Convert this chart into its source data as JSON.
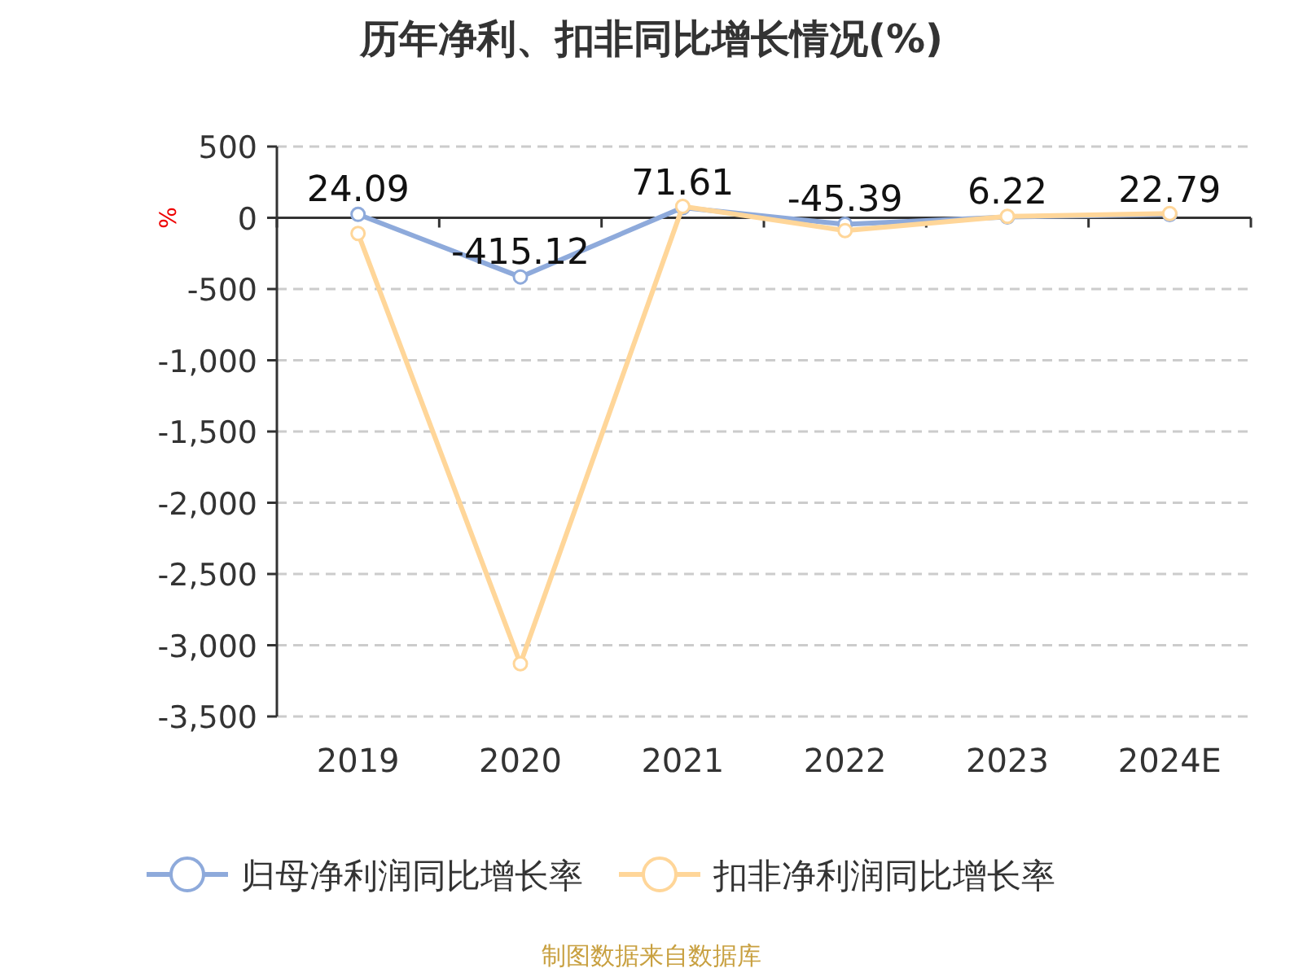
{
  "chart_data": {
    "type": "line",
    "title": "历年净利、扣非同比增长情况(%)",
    "ylabel": "%",
    "categories": [
      "2019",
      "2020",
      "2021",
      "2022",
      "2023",
      "2024E"
    ],
    "series": [
      {
        "name": "归母净利润同比增长率",
        "color": "#8eaadb",
        "values": [
          24.09,
          -415.12,
          71.61,
          -45.39,
          6.22,
          22.79
        ],
        "value_labels": [
          "24.09",
          "-415.12",
          "71.61",
          "-45.39",
          "6.22",
          "22.79"
        ]
      },
      {
        "name": "扣非净利润同比增长率",
        "color": "#ffd699",
        "values": [
          -110,
          -3130,
          80,
          -90,
          10,
          30
        ]
      }
    ],
    "ylim": [
      -3500,
      500
    ],
    "yticks": [
      500,
      0,
      {
        "value": -500,
        "label": "-500"
      },
      {
        "value": -1000,
        "label": "-1,000"
      },
      {
        "value": -1500,
        "label": "-1,500"
      },
      {
        "value": -2000,
        "label": "-2,000"
      },
      {
        "value": -2500,
        "label": "-2,500"
      },
      {
        "value": -3000,
        "label": "-3,000"
      },
      {
        "value": -3500,
        "label": "-3,500"
      }
    ],
    "grid": "y",
    "legend": "bottom",
    "marker": "circle",
    "line_style": "solid",
    "annotations": [
      "制图数据来自数据库"
    ]
  }
}
